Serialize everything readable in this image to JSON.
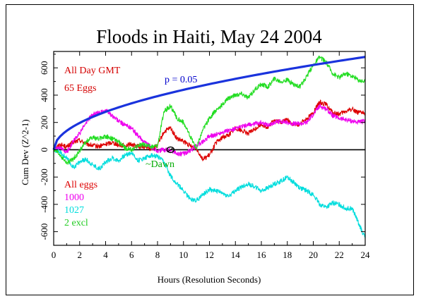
{
  "chart_data": {
    "type": "line",
    "title": "Floods in Haiti, May 24 2004",
    "xlabel": "Hours (Resolution Seconds)",
    "ylabel": "Cum Dev (Z^2-1)",
    "xlim": [
      0,
      24
    ],
    "ylim": [
      -700,
      720
    ],
    "x_ticks": [
      0,
      2,
      4,
      6,
      8,
      10,
      12,
      14,
      16,
      18,
      20,
      22,
      24
    ],
    "y_ticks": [
      -600,
      -400,
      -200,
      0,
      200,
      400,
      600
    ],
    "grid": false,
    "annotations": {
      "header_line1": "All Day GMT",
      "header_line2": "65 Eggs",
      "header_color": "#d40000",
      "probability_label": "p = 0.05",
      "probability_color": "#0000cc",
      "event_label": "~Dawn",
      "event_color": "#00aa00",
      "event_x": 9.0,
      "series_labels": [
        {
          "text": "All eggs",
          "color": "#dd0000"
        },
        {
          "text": "1000",
          "color": "#ee00ee"
        },
        {
          "text": "1027",
          "color": "#00dddd"
        },
        {
          "text": "2 excl",
          "color": "#22cc22"
        }
      ]
    },
    "probability_envelope": {
      "name": "p = 0.05",
      "color": "#1a33dd",
      "x": [
        0,
        0.5,
        1,
        2,
        3,
        4,
        6,
        8,
        10,
        12,
        14,
        16,
        18,
        20,
        22,
        24
      ],
      "values": [
        0,
        98,
        139,
        196,
        240,
        277,
        340,
        392,
        439,
        480,
        519,
        555,
        588,
        620,
        650,
        680
      ]
    },
    "series": [
      {
        "color": "#dd0000",
        "x": [
          0,
          0.5,
          1,
          1.5,
          2,
          2.5,
          3,
          3.5,
          4,
          4.5,
          5,
          5.5,
          6,
          6.5,
          7,
          7.5,
          8,
          8.5,
          9,
          9.5,
          10,
          10.5,
          11,
          11.5,
          12,
          12.5,
          13,
          13.5,
          14,
          14.5,
          15,
          15.5,
          16,
          16.5,
          17,
          17.5,
          18,
          18.5,
          19,
          19.5,
          20,
          20.5,
          21,
          21.5,
          22,
          22.5,
          23,
          23.5,
          24
        ],
        "values": [
          0,
          40,
          20,
          55,
          70,
          45,
          30,
          25,
          40,
          55,
          35,
          30,
          40,
          25,
          20,
          5,
          30,
          130,
          160,
          80,
          60,
          30,
          10,
          -70,
          -40,
          50,
          90,
          110,
          160,
          140,
          120,
          150,
          190,
          160,
          220,
          200,
          220,
          180,
          190,
          230,
          270,
          350,
          330,
          270,
          260,
          280,
          300,
          270,
          270
        ]
      },
      {
        "color": "#ee00ee",
        "x": [
          0,
          0.5,
          1,
          1.5,
          2,
          2.5,
          3,
          3.5,
          4,
          4.5,
          5,
          5.5,
          6,
          6.5,
          7,
          7.5,
          8,
          8.5,
          9,
          9.5,
          10,
          10.5,
          11,
          11.5,
          12,
          12.5,
          13,
          13.5,
          14,
          14.5,
          15,
          15.5,
          16,
          16.5,
          17,
          17.5,
          18,
          18.5,
          19,
          19.5,
          20,
          20.5,
          21,
          21.5,
          22,
          22.5,
          23,
          23.5,
          24
        ],
        "values": [
          0,
          10,
          -20,
          60,
          120,
          200,
          260,
          270,
          290,
          250,
          210,
          180,
          160,
          100,
          60,
          20,
          -10,
          0,
          -5,
          -30,
          -30,
          -10,
          30,
          60,
          100,
          110,
          130,
          140,
          150,
          170,
          180,
          190,
          200,
          180,
          200,
          210,
          200,
          190,
          190,
          200,
          260,
          320,
          300,
          250,
          230,
          220,
          210,
          200,
          210
        ]
      },
      {
        "color": "#00dddd",
        "x": [
          0,
          0.5,
          1,
          1.5,
          2,
          2.5,
          3,
          3.5,
          4,
          4.5,
          5,
          5.5,
          6,
          6.5,
          7,
          7.5,
          8,
          8.5,
          9,
          9.5,
          10,
          10.5,
          11,
          11.5,
          12,
          12.5,
          13,
          13.5,
          14,
          14.5,
          15,
          15.5,
          16,
          16.5,
          17,
          17.5,
          18,
          18.5,
          19,
          19.5,
          20,
          20.5,
          21,
          21.5,
          22,
          22.5,
          23,
          23.5,
          24
        ],
        "values": [
          0,
          -20,
          -60,
          -130,
          -90,
          -70,
          -110,
          -140,
          -90,
          -60,
          -80,
          -40,
          -20,
          -80,
          -60,
          -40,
          -50,
          -90,
          -190,
          -250,
          -300,
          -360,
          -370,
          -330,
          -290,
          -300,
          -320,
          -340,
          -300,
          -270,
          -250,
          -270,
          -300,
          -280,
          -250,
          -230,
          -200,
          -240,
          -280,
          -300,
          -330,
          -400,
          -420,
          -390,
          -400,
          -430,
          -430,
          -540,
          -650
        ]
      },
      {
        "color": "#22dd22",
        "x": [
          0,
          0.5,
          1,
          1.5,
          2,
          2.5,
          3,
          3.5,
          4,
          4.5,
          5,
          5.5,
          6,
          6.5,
          7,
          7.5,
          8,
          8.5,
          9,
          9.5,
          10,
          10.5,
          11,
          11.5,
          12,
          12.5,
          13,
          13.5,
          14,
          14.5,
          15,
          15.5,
          16,
          16.5,
          17,
          17.5,
          18,
          18.5,
          19,
          19.5,
          20,
          20.5,
          21,
          21.5,
          22,
          22.5,
          23,
          23.5,
          24
        ],
        "values": [
          0,
          -40,
          -100,
          -70,
          -10,
          60,
          90,
          80,
          100,
          80,
          60,
          10,
          0,
          30,
          40,
          20,
          30,
          280,
          320,
          230,
          200,
          100,
          10,
          150,
          230,
          290,
          330,
          380,
          400,
          410,
          380,
          440,
          480,
          460,
          520,
          500,
          510,
          480,
          460,
          540,
          620,
          680,
          640,
          560,
          530,
          560,
          540,
          510,
          500
        ]
      }
    ]
  }
}
